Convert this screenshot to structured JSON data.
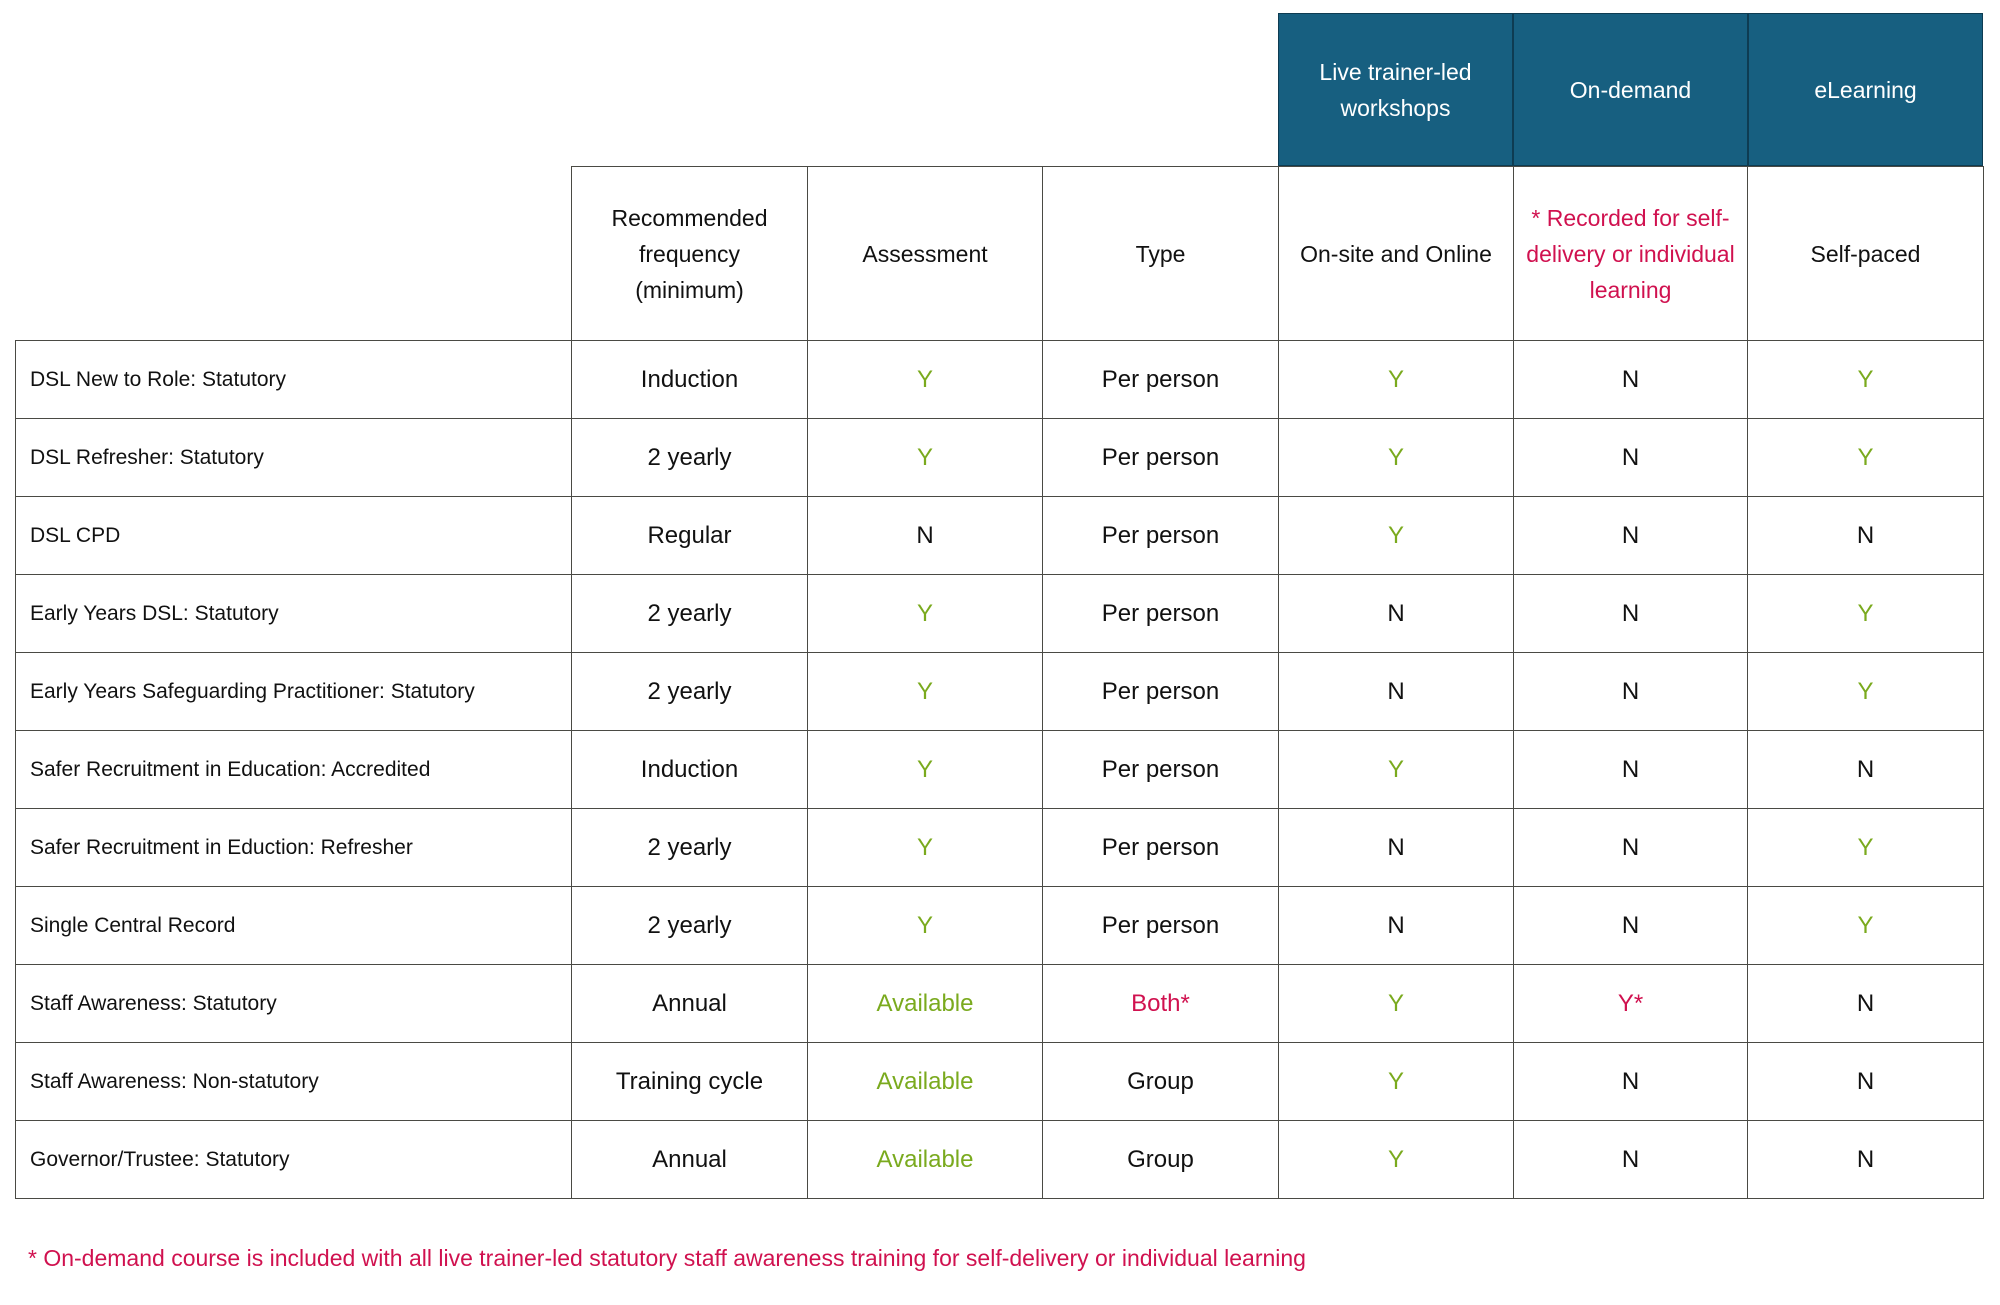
{
  "delivery_headers": [
    "Live trainer-led workshops",
    "On-demand",
    "eLearning"
  ],
  "column_headers": [
    "Recommended frequency (minimum)",
    "Assessment",
    "Type",
    "On-site and Online",
    "* Recorded for self-delivery or individual learning",
    "Self-paced"
  ],
  "colors": {
    "header_bg": "#175f80",
    "yes_green": "#7aaa1e",
    "note_red": "#d0114f"
  },
  "rows": [
    {
      "course": "DSL New to Role: Statutory",
      "frequency": "Induction",
      "assessment": "Y",
      "type": "Per person",
      "live": "Y",
      "on_demand": "N",
      "elearning": "Y"
    },
    {
      "course": "DSL Refresher: Statutory",
      "frequency": "2 yearly",
      "assessment": "Y",
      "type": "Per person",
      "live": "Y",
      "on_demand": "N",
      "elearning": "Y"
    },
    {
      "course": "DSL CPD",
      "frequency": "Regular",
      "assessment": "N",
      "type": "Per person",
      "live": "Y",
      "on_demand": "N",
      "elearning": "N"
    },
    {
      "course": "Early Years DSL: Statutory",
      "frequency": "2 yearly",
      "assessment": "Y",
      "type": "Per person",
      "live": "N",
      "on_demand": "N",
      "elearning": "Y"
    },
    {
      "course": "Early Years Safeguarding Practitioner: Statutory",
      "frequency": "2 yearly",
      "assessment": "Y",
      "type": "Per person",
      "live": "N",
      "on_demand": "N",
      "elearning": "Y"
    },
    {
      "course": "Safer Recruitment in Education: Accredited",
      "frequency": "Induction",
      "assessment": "Y",
      "type": "Per person",
      "live": "Y",
      "on_demand": "N",
      "elearning": "N"
    },
    {
      "course": "Safer Recruitment in Eduction: Refresher",
      "frequency": "2 yearly",
      "assessment": "Y",
      "type": "Per person",
      "live": "N",
      "on_demand": "N",
      "elearning": "Y"
    },
    {
      "course": "Single Central Record",
      "frequency": "2 yearly",
      "assessment": "Y",
      "type": "Per person",
      "live": "N",
      "on_demand": "N",
      "elearning": "Y"
    },
    {
      "course": "Staff Awareness: Statutory",
      "frequency": "Annual",
      "assessment": "Available",
      "type": "Both*",
      "live": "Y",
      "on_demand": "Y*",
      "elearning": "N"
    },
    {
      "course": "Staff Awareness: Non-statutory",
      "frequency": "Training cycle",
      "assessment": "Available",
      "type": "Group",
      "live": "Y",
      "on_demand": "N",
      "elearning": "N"
    },
    {
      "course": "Governor/Trustee: Statutory",
      "frequency": "Annual",
      "assessment": "Available",
      "type": "Group",
      "live": "Y",
      "on_demand": "N",
      "elearning": "N"
    }
  ],
  "footnote": "* On-demand course is included with all live trainer-led statutory staff awareness training for self-delivery or individual learning"
}
